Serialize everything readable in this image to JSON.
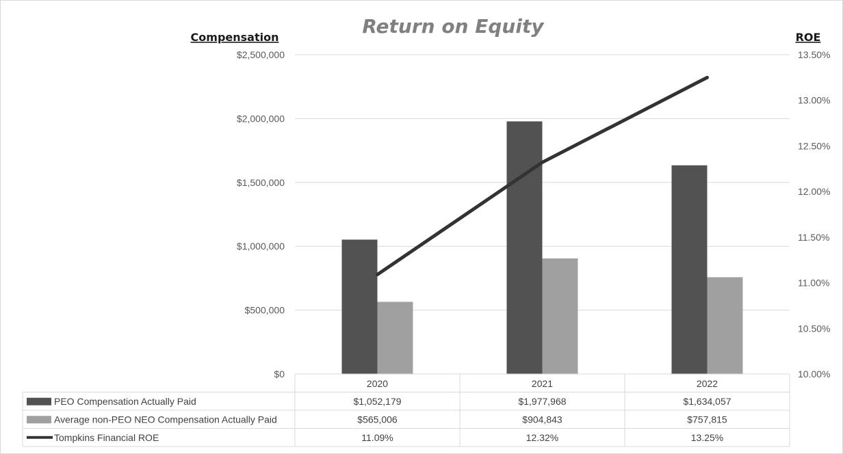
{
  "chart_data": {
    "type": "bar",
    "title": "Return on Equity",
    "ylabel_left": "Compensation",
    "ylabel_right": "ROE",
    "categories": [
      "2020",
      "2021",
      "2022"
    ],
    "y_left": {
      "min": 0,
      "max": 2500000,
      "ticks": [
        0,
        500000,
        1000000,
        1500000,
        2000000,
        2500000
      ],
      "tick_labels": [
        "$0",
        "$500,000",
        "$1,000,000",
        "$1,500,000",
        "$2,000,000",
        "$2,500,000"
      ]
    },
    "y_right": {
      "min": 10.0,
      "max": 13.5,
      "ticks": [
        10.0,
        10.5,
        11.0,
        11.5,
        12.0,
        12.5,
        13.0,
        13.5
      ],
      "tick_labels": [
        "10.00%",
        "10.50%",
        "11.00%",
        "11.50%",
        "12.00%",
        "12.50%",
        "13.00%",
        "13.50%"
      ]
    },
    "grid": true,
    "legend": "data-table",
    "series": [
      {
        "name": "PEO Compensation Actually Paid",
        "kind": "bar",
        "axis": "left",
        "color": "#525252",
        "values": [
          1052179,
          1977968,
          1634057
        ],
        "labels": [
          "$1,052,179",
          "$1,977,968",
          "$1,634,057"
        ]
      },
      {
        "name": "Average non-PEO NEO Compensation Actually Paid",
        "kind": "bar",
        "axis": "left",
        "color": "#a0a0a0",
        "values": [
          565006,
          904843,
          757815
        ],
        "labels": [
          "$565,006",
          "$904,843",
          "$757,815"
        ]
      },
      {
        "name": "Tompkins Financial ROE",
        "kind": "line",
        "axis": "right",
        "color": "#333333",
        "values": [
          11.09,
          12.32,
          13.25
        ],
        "labels": [
          "11.09%",
          "12.32%",
          "13.25%"
        ]
      }
    ]
  }
}
